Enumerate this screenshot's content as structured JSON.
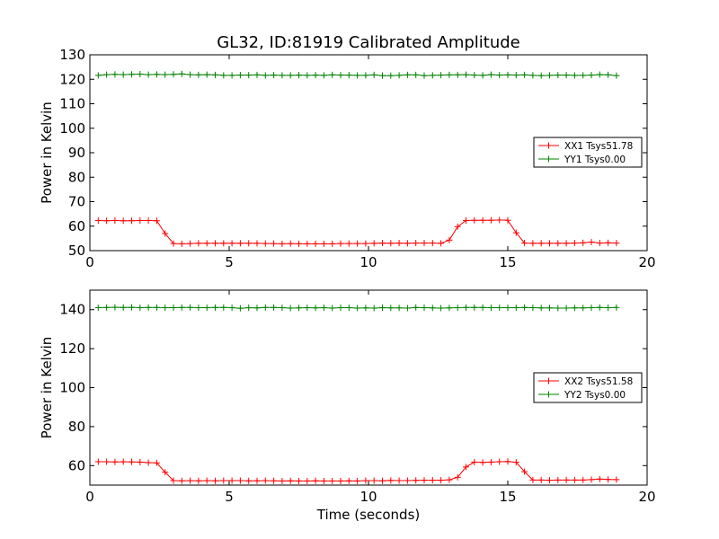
{
  "title": "GL32, ID:81919 Calibrated Amplitude",
  "chart_data": [
    {
      "type": "line",
      "ylabel": "Power in Kelvin",
      "xlabel": "",
      "xlim": [
        0,
        20
      ],
      "ylim": [
        50,
        130
      ],
      "xticks": [
        0,
        5,
        10,
        15,
        20
      ],
      "yticks": [
        50,
        60,
        70,
        80,
        90,
        100,
        110,
        120,
        130
      ],
      "legend_position": "center-right",
      "x": [
        0.3,
        0.6,
        0.9,
        1.2,
        1.5,
        1.8,
        2.1,
        2.4,
        2.7,
        3.0,
        3.3,
        3.6,
        3.9,
        4.2,
        4.5,
        4.8,
        5.1,
        5.4,
        5.7,
        6.0,
        6.3,
        6.6,
        6.9,
        7.2,
        7.5,
        7.8,
        8.1,
        8.4,
        8.7,
        9.0,
        9.3,
        9.6,
        9.9,
        10.2,
        10.5,
        10.8,
        11.1,
        11.4,
        11.7,
        12.0,
        12.3,
        12.6,
        12.9,
        13.2,
        13.5,
        13.8,
        14.1,
        14.4,
        14.7,
        15.0,
        15.3,
        15.6,
        15.9,
        16.2,
        16.5,
        16.8,
        17.1,
        17.4,
        17.7,
        18.0,
        18.3,
        18.6,
        18.9
      ],
      "series": [
        {
          "name": "XX1 Tsys51.78",
          "color": "#ff0000",
          "values": [
            62.3,
            62.2,
            62.3,
            62.2,
            62.2,
            62.3,
            62.3,
            62.2,
            57.0,
            52.9,
            52.8,
            52.9,
            53.0,
            53.0,
            53.0,
            53.0,
            53.0,
            53.0,
            53.0,
            53.0,
            52.9,
            52.9,
            52.8,
            52.9,
            52.8,
            52.8,
            52.8,
            52.8,
            52.8,
            52.9,
            52.9,
            52.9,
            52.9,
            53.0,
            53.1,
            53.0,
            53.1,
            53.0,
            53.1,
            53.1,
            53.1,
            53.0,
            54.3,
            59.8,
            62.3,
            62.4,
            62.4,
            62.4,
            62.5,
            62.4,
            57.3,
            53.1,
            53.0,
            53.0,
            53.0,
            53.0,
            53.0,
            53.1,
            53.2,
            53.5,
            53.1,
            53.2,
            53.1
          ]
        },
        {
          "name": "YY1 Tsys0.00",
          "color": "#008000",
          "values": [
            121.6,
            121.9,
            122.0,
            121.9,
            122.0,
            122.1,
            121.9,
            122.0,
            121.9,
            122.0,
            122.2,
            121.9,
            121.8,
            121.9,
            121.8,
            121.6,
            121.6,
            121.7,
            121.7,
            121.8,
            121.6,
            121.7,
            121.6,
            121.6,
            121.7,
            121.6,
            121.7,
            121.6,
            121.8,
            121.7,
            121.7,
            121.6,
            121.6,
            121.8,
            121.5,
            121.5,
            121.6,
            121.8,
            121.8,
            121.5,
            121.6,
            121.7,
            121.8,
            121.8,
            121.9,
            121.7,
            121.6,
            121.9,
            121.7,
            121.8,
            121.7,
            121.8,
            121.6,
            121.5,
            121.6,
            121.7,
            121.7,
            121.6,
            121.6,
            121.7,
            121.9,
            121.8,
            121.5
          ]
        }
      ]
    },
    {
      "type": "line",
      "ylabel": "Power in Kelvin",
      "xlabel": "Time (seconds)",
      "xlim": [
        0,
        20
      ],
      "ylim": [
        50,
        150
      ],
      "xticks": [
        0,
        5,
        10,
        15,
        20
      ],
      "yticks": [
        60,
        80,
        100,
        120,
        140
      ],
      "legend_position": "center-right",
      "x": [
        0.3,
        0.6,
        0.9,
        1.2,
        1.5,
        1.8,
        2.1,
        2.4,
        2.7,
        3.0,
        3.3,
        3.6,
        3.9,
        4.2,
        4.5,
        4.8,
        5.1,
        5.4,
        5.7,
        6.0,
        6.3,
        6.6,
        6.9,
        7.2,
        7.5,
        7.8,
        8.1,
        8.4,
        8.7,
        9.0,
        9.3,
        9.6,
        9.9,
        10.2,
        10.5,
        10.8,
        11.1,
        11.4,
        11.7,
        12.0,
        12.3,
        12.6,
        12.9,
        13.2,
        13.5,
        13.8,
        14.1,
        14.4,
        14.7,
        15.0,
        15.3,
        15.6,
        15.9,
        16.2,
        16.5,
        16.8,
        17.1,
        17.4,
        17.7,
        18.0,
        18.3,
        18.6,
        18.9
      ],
      "series": [
        {
          "name": "XX2 Tsys51.58",
          "color": "#ff0000",
          "values": [
            62.0,
            62.0,
            61.9,
            62.0,
            61.9,
            61.8,
            61.5,
            61.4,
            56.6,
            52.3,
            52.2,
            52.3,
            52.2,
            52.3,
            52.2,
            52.3,
            52.3,
            52.3,
            52.2,
            52.2,
            52.3,
            52.2,
            52.1,
            52.2,
            52.1,
            52.1,
            52.2,
            52.1,
            52.1,
            52.1,
            52.2,
            52.1,
            52.3,
            52.3,
            52.2,
            52.4,
            52.3,
            52.3,
            52.4,
            52.5,
            52.5,
            52.5,
            52.7,
            54.0,
            59.3,
            61.8,
            61.6,
            61.8,
            62.0,
            62.1,
            61.7,
            56.9,
            52.6,
            52.6,
            52.5,
            52.6,
            52.6,
            52.6,
            52.6,
            52.8,
            53.1,
            52.9,
            52.8
          ]
        },
        {
          "name": "YY2 Tsys0.00",
          "color": "#008000",
          "values": [
            141.0,
            141.1,
            141.2,
            141.1,
            141.2,
            141.0,
            141.1,
            141.1,
            141.0,
            141.0,
            141.1,
            141.1,
            141.0,
            141.0,
            141.1,
            141.1,
            141.0,
            140.7,
            141.0,
            140.9,
            141.1,
            141.1,
            141.0,
            140.8,
            140.9,
            141.0,
            140.9,
            141.0,
            140.8,
            141.0,
            141.0,
            140.8,
            140.9,
            140.8,
            141.0,
            140.9,
            140.9,
            140.8,
            141.1,
            141.0,
            140.9,
            140.8,
            140.9,
            141.0,
            141.1,
            141.1,
            141.1,
            141.0,
            141.0,
            141.0,
            141.0,
            141.1,
            141.0,
            140.9,
            140.9,
            140.8,
            140.8,
            140.9,
            140.9,
            141.0,
            141.1,
            141.0,
            141.1
          ]
        }
      ]
    }
  ]
}
